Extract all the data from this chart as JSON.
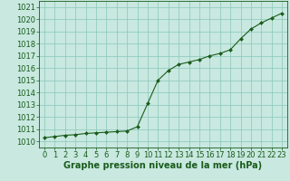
{
  "x": [
    0,
    1,
    2,
    3,
    4,
    5,
    6,
    7,
    8,
    9,
    10,
    11,
    12,
    13,
    14,
    15,
    16,
    17,
    18,
    19,
    20,
    21,
    22,
    23
  ],
  "y": [
    1010.3,
    1010.4,
    1010.5,
    1010.55,
    1010.65,
    1010.7,
    1010.75,
    1010.8,
    1010.85,
    1011.2,
    1013.1,
    1015.0,
    1015.8,
    1016.3,
    1016.5,
    1016.7,
    1017.0,
    1017.2,
    1017.5,
    1018.4,
    1019.2,
    1019.7,
    1020.1,
    1020.5
  ],
  "line_color": "#1a5c1a",
  "marker_color": "#1a5c1a",
  "background_color": "#c8e8e0",
  "grid_color": "#88c8b8",
  "xlabel": "Graphe pression niveau de la mer (hPa)",
  "xlabel_color": "#1a5c1a",
  "tick_color": "#1a5c1a",
  "ylim": [
    1009.5,
    1021.5
  ],
  "yticks": [
    1010,
    1011,
    1012,
    1013,
    1014,
    1015,
    1016,
    1017,
    1018,
    1019,
    1020,
    1021
  ],
  "xticks": [
    0,
    1,
    2,
    3,
    4,
    5,
    6,
    7,
    8,
    9,
    10,
    11,
    12,
    13,
    14,
    15,
    16,
    17,
    18,
    19,
    20,
    21,
    22,
    23
  ],
  "font_size": 6.0,
  "xlabel_fontsize": 7.0,
  "marker_size": 2.0,
  "line_width": 0.8
}
